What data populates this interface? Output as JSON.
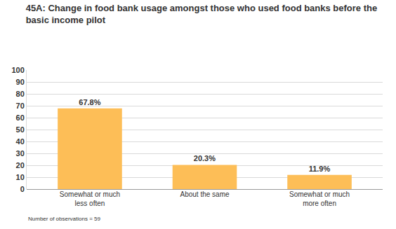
{
  "chart_data": {
    "type": "bar",
    "title": "45A: Change in food bank usage amongst those who used food banks before the basic income pilot",
    "categories": [
      "Somewhat or much less often",
      "About the same",
      "Somewhat or much more often"
    ],
    "values": [
      67.8,
      20.3,
      11.9
    ],
    "value_labels": [
      "67.8%",
      "20.3%",
      "11.9%"
    ],
    "data_labels": true,
    "color": "#fdbe57",
    "ylim": [
      0,
      100
    ],
    "yticks": [
      0,
      10,
      20,
      30,
      40,
      50,
      60,
      70,
      80,
      90,
      100
    ],
    "grid": true,
    "note": "Number of observations = 59"
  }
}
